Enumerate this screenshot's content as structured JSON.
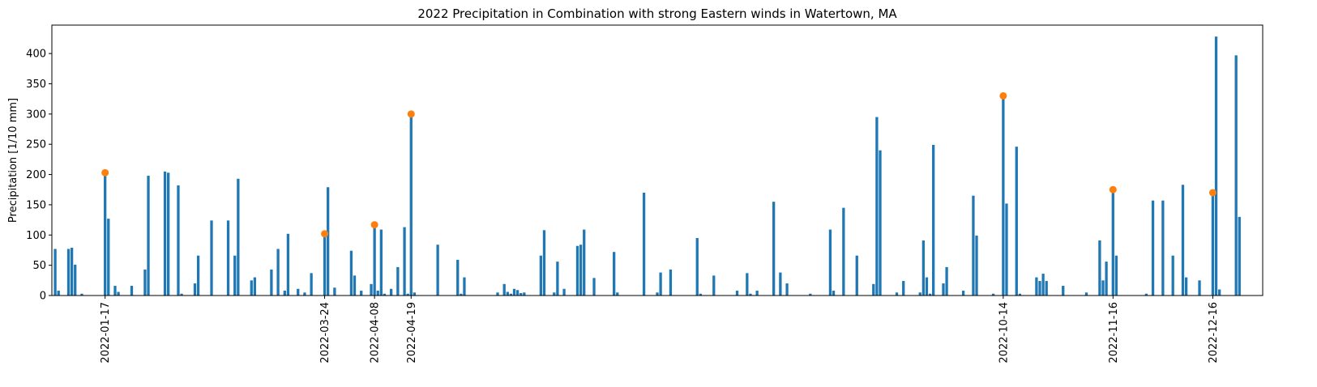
{
  "chart_data": {
    "type": "bar",
    "title": "2022 Precipitation in Combination with strong Eastern winds in Watertown, MA",
    "ylabel": "Precipitation [1/10 mm]",
    "xlim": [
      "2022-01-01",
      "2022-12-31"
    ],
    "ylim": [
      0,
      447
    ],
    "yticks": [
      0,
      50,
      100,
      150,
      200,
      250,
      300,
      350,
      400
    ],
    "xticks": [
      "2022-01-17",
      "2022-03-24",
      "2022-04-08",
      "2022-04-19",
      "2022-10-14",
      "2022-11-16",
      "2022-12-16"
    ],
    "bars": {
      "color": "#1f77b4",
      "x": [
        "2022-01-02",
        "2022-01-03",
        "2022-01-06",
        "2022-01-07",
        "2022-01-08",
        "2022-01-10",
        "2022-01-17",
        "2022-01-18",
        "2022-01-20",
        "2022-01-21",
        "2022-01-25",
        "2022-01-29",
        "2022-01-30",
        "2022-02-04",
        "2022-02-05",
        "2022-02-08",
        "2022-02-09",
        "2022-02-13",
        "2022-02-14",
        "2022-02-18",
        "2022-02-23",
        "2022-02-25",
        "2022-02-26",
        "2022-03-02",
        "2022-03-03",
        "2022-03-08",
        "2022-03-10",
        "2022-03-12",
        "2022-03-13",
        "2022-03-16",
        "2022-03-18",
        "2022-03-20",
        "2022-03-24",
        "2022-03-25",
        "2022-03-27",
        "2022-04-01",
        "2022-04-02",
        "2022-04-04",
        "2022-04-07",
        "2022-04-08",
        "2022-04-09",
        "2022-04-10",
        "2022-04-11",
        "2022-04-13",
        "2022-04-15",
        "2022-04-17",
        "2022-04-18",
        "2022-04-19",
        "2022-04-20",
        "2022-04-27",
        "2022-05-03",
        "2022-05-04",
        "2022-05-05",
        "2022-05-15",
        "2022-05-17",
        "2022-05-18",
        "2022-05-19",
        "2022-05-20",
        "2022-05-21",
        "2022-05-22",
        "2022-05-23",
        "2022-05-28",
        "2022-05-29",
        "2022-06-01",
        "2022-06-02",
        "2022-06-04",
        "2022-06-08",
        "2022-06-09",
        "2022-06-10",
        "2022-06-13",
        "2022-06-19",
        "2022-06-20",
        "2022-06-28",
        "2022-07-02",
        "2022-07-03",
        "2022-07-06",
        "2022-07-14",
        "2022-07-15",
        "2022-07-19",
        "2022-07-26",
        "2022-07-29",
        "2022-07-30",
        "2022-08-01",
        "2022-08-06",
        "2022-08-08",
        "2022-08-10",
        "2022-08-17",
        "2022-08-23",
        "2022-08-24",
        "2022-08-27",
        "2022-08-31",
        "2022-09-05",
        "2022-09-06",
        "2022-09-07",
        "2022-09-12",
        "2022-09-14",
        "2022-09-19",
        "2022-09-20",
        "2022-09-21",
        "2022-09-22",
        "2022-09-23",
        "2022-09-26",
        "2022-09-27",
        "2022-10-02",
        "2022-10-05",
        "2022-10-06",
        "2022-10-11",
        "2022-10-14",
        "2022-10-15",
        "2022-10-18",
        "2022-10-19",
        "2022-10-24",
        "2022-10-25",
        "2022-10-26",
        "2022-10-27",
        "2022-11-01",
        "2022-11-08",
        "2022-11-12",
        "2022-11-13",
        "2022-11-14",
        "2022-11-16",
        "2022-11-17",
        "2022-11-26",
        "2022-11-28",
        "2022-12-01",
        "2022-12-04",
        "2022-12-07",
        "2022-12-08",
        "2022-12-12",
        "2022-12-16",
        "2022-12-17",
        "2022-12-18",
        "2022-12-23",
        "2022-12-24"
      ],
      "values": [
        77,
        8,
        77,
        79,
        51,
        3,
        200,
        127,
        16,
        6,
        16,
        43,
        198,
        205,
        203,
        182,
        3,
        20,
        66,
        124,
        124,
        66,
        193,
        25,
        30,
        43,
        77,
        8,
        102,
        11,
        5,
        37,
        102,
        179,
        13,
        74,
        33,
        8,
        19,
        115,
        8,
        109,
        3,
        11,
        47,
        113,
        3,
        300,
        5,
        84,
        59,
        3,
        30,
        5,
        19,
        6,
        3,
        11,
        9,
        4,
        5,
        66,
        108,
        5,
        56,
        11,
        82,
        84,
        109,
        29,
        72,
        5,
        170,
        5,
        38,
        43,
        95,
        3,
        33,
        8,
        37,
        3,
        8,
        155,
        38,
        20,
        3,
        109,
        8,
        145,
        66,
        19,
        295,
        240,
        5,
        24,
        5,
        91,
        30,
        3,
        249,
        20,
        47,
        8,
        165,
        99,
        3,
        330,
        152,
        246,
        3,
        30,
        24,
        36,
        24,
        16,
        5,
        91,
        25,
        56,
        173,
        66,
        3,
        157,
        157,
        66,
        183,
        30,
        25,
        170,
        428,
        10,
        397,
        130
      ]
    },
    "points": {
      "color": "#ff7f0e",
      "x": [
        "2022-01-17",
        "2022-03-24",
        "2022-04-08",
        "2022-04-19",
        "2022-10-14",
        "2022-11-16",
        "2022-12-16"
      ],
      "values": [
        203,
        102,
        117,
        300,
        330,
        175,
        170
      ]
    }
  }
}
